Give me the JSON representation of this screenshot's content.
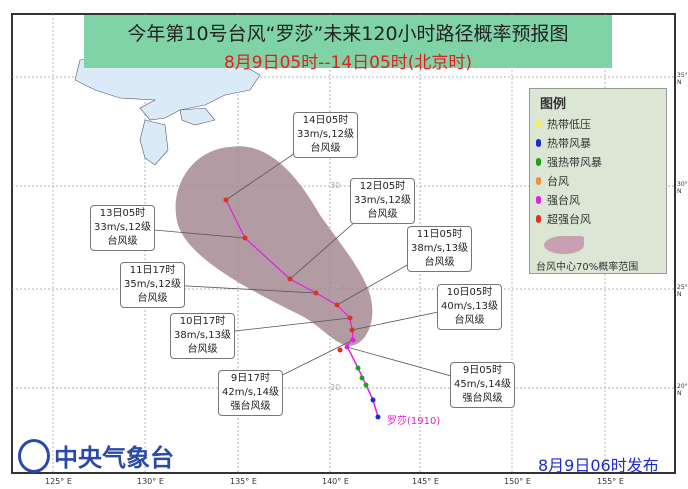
{
  "title": "今年第10号台风“罗莎”未来120小时路径概率预报图",
  "subtitle": "8月9日05时--14日05时(北京时)",
  "legend": {
    "heading": "图例",
    "items": [
      {
        "label": "热带低压",
        "color": "#f0f060"
      },
      {
        "label": "热带风暴",
        "color": "#1030d0"
      },
      {
        "label": "强热带风暴",
        "color": "#20a020"
      },
      {
        "label": "台风",
        "color": "#f09040"
      },
      {
        "label": "强台风",
        "color": "#e020e0"
      },
      {
        "label": "超强台风",
        "color": "#e03020"
      }
    ],
    "cone_label": "台风中心70%概率范围"
  },
  "forecast": [
    {
      "time": "14日05时",
      "wind": "33m/s,12级",
      "level": "台风级"
    },
    {
      "time": "12日05时",
      "wind": "33m/s,12级",
      "level": "台风级"
    },
    {
      "time": "13日05时",
      "wind": "33m/s,12级",
      "level": "台风级"
    },
    {
      "time": "11日05时",
      "wind": "38m/s,13级",
      "level": "台风级"
    },
    {
      "time": "11日17时",
      "wind": "35m/s,12级",
      "level": "台风级"
    },
    {
      "time": "10日05时",
      "wind": "40m/s,13级",
      "level": "台风级"
    },
    {
      "time": "10日17时",
      "wind": "38m/s,13级",
      "level": "台风级"
    },
    {
      "time": "9日17时",
      "wind": "42m/s,14级",
      "level": "强台风级"
    },
    {
      "time": "9日05时",
      "wind": "45m/s,14级",
      "level": "强台风级"
    }
  ],
  "storm_name": "罗莎(1910)",
  "agency": "中央气象台",
  "issued": "8月9日06时发布",
  "lon_ticks": [
    "125° E",
    "130° E",
    "135° E",
    "140° E",
    "145° E",
    "150° E",
    "155° E"
  ],
  "lat_ticks": [
    "35° N",
    "30° N",
    "25° N",
    "20° N"
  ],
  "grid_lat_labels": [
    "30",
    "25",
    "20"
  ]
}
